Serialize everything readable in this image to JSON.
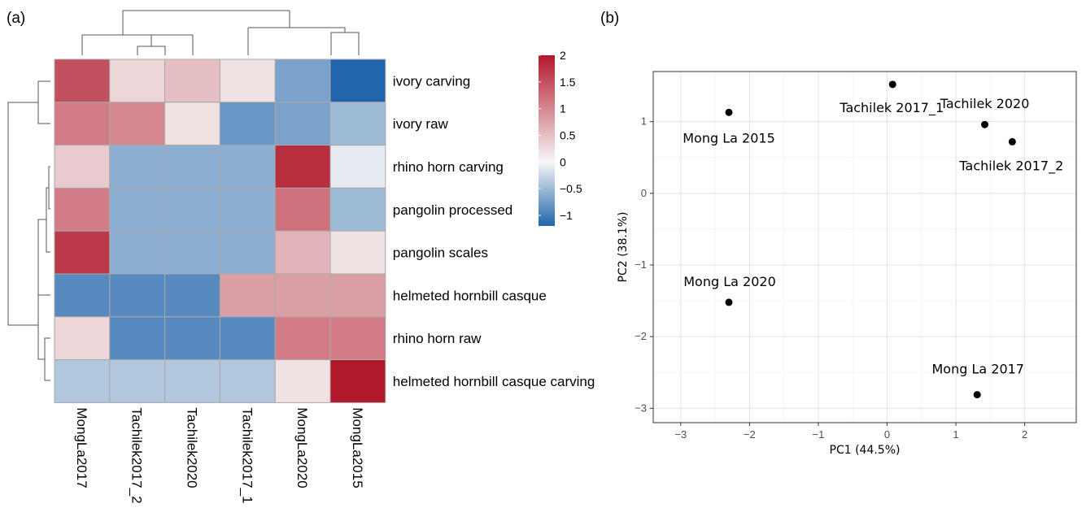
{
  "chart_data": [
    {
      "panel_label": "(a)",
      "type": "heatmap",
      "columns": [
        "MongLa2017",
        "Tachilek2017_2",
        "Tachilek2020",
        "Tachilek2017_1",
        "MongLa2020",
        "MongLa2015"
      ],
      "rows": [
        "ivory carving",
        "ivory raw",
        "rhino horn carving",
        "pangolin processed",
        "pangolin scales",
        "helmeted hornbill casque",
        "rhino horn raw",
        "helmeted hornbill casque carving"
      ],
      "values": [
        [
          1.5,
          0.3,
          0.5,
          0.2,
          -0.7,
          -1.2
        ],
        [
          1.1,
          1.0,
          0.2,
          -0.8,
          -0.7,
          -0.5
        ],
        [
          0.4,
          -0.6,
          -0.6,
          -0.6,
          1.8,
          -0.1
        ],
        [
          1.1,
          -0.6,
          -0.6,
          -0.6,
          1.2,
          -0.5
        ],
        [
          1.7,
          -0.6,
          -0.6,
          -0.6,
          0.6,
          0.2
        ],
        [
          -0.9,
          -0.9,
          -0.9,
          0.8,
          0.8,
          0.8
        ],
        [
          0.3,
          -0.9,
          -0.9,
          -0.9,
          1.1,
          1.1
        ],
        [
          -0.4,
          -0.4,
          -0.4,
          -0.4,
          0.2,
          2.0
        ]
      ],
      "colorbar": {
        "range": [
          -1.2,
          2.0
        ],
        "ticks": [
          "2",
          "1.5",
          "1",
          "0.5",
          "0",
          "−0.5",
          "−1"
        ],
        "tick_values": [
          2,
          1.5,
          1,
          0.5,
          0,
          -0.5,
          -1
        ],
        "colors": {
          "low": "#2166ac",
          "mid": "#f7f7f7",
          "high": "#b2182b"
        }
      }
    },
    {
      "panel_label": "(b)",
      "type": "scatter",
      "xlabel": "PC1 (44.5%)",
      "ylabel": "PC2 (38.1%)",
      "xlim": [
        -3.4,
        2.75
      ],
      "ylim": [
        -3.2,
        1.7
      ],
      "xticks": [
        -3,
        -2,
        -1,
        0,
        1,
        2
      ],
      "xtick_labels": [
        "−3",
        "−2",
        "−1",
        "0",
        "1",
        "2"
      ],
      "yticks": [
        1,
        0,
        -1,
        -2,
        -3
      ],
      "ytick_labels": [
        "1",
        "0",
        "−1",
        "−2",
        "−3"
      ],
      "grid": true,
      "points": [
        {
          "label": "Mong La 2015",
          "x": -2.3,
          "y": 1.13
        },
        {
          "label": "Tachilek 2017_1",
          "x": 0.08,
          "y": 1.52
        },
        {
          "label": "Tachilek 2020",
          "x": 1.42,
          "y": 0.96
        },
        {
          "label": "Tachilek 2017_2",
          "x": 1.82,
          "y": 0.72
        },
        {
          "label": "Mong La 2020",
          "x": -2.3,
          "y": -1.52
        },
        {
          "label": "Mong La 2017",
          "x": 1.31,
          "y": -2.81
        }
      ]
    }
  ]
}
